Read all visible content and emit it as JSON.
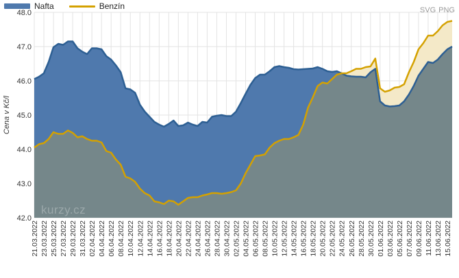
{
  "legend": {
    "nafta": "Nafta",
    "benzin": "Benzín"
  },
  "export": {
    "svg": "SVG",
    "png": "PNG"
  },
  "watermark": "kurzy.cz",
  "colors": {
    "nafta_line": "#2d5f93",
    "nafta_fill": "#4f79ad",
    "benzin_line": "#d4a100",
    "benzin_fill": "#f4e9c8",
    "overlap_fill": "#75878a",
    "grid": "#e3e3e3",
    "axis_text": "#333333"
  },
  "chart_data": {
    "type": "area",
    "xlabel": "",
    "ylabel": "Cena v Kč/l",
    "ylim": [
      42.0,
      48.0
    ],
    "yticks": [
      "42.0",
      "43.0",
      "44.0",
      "45.0",
      "46.0",
      "47.0",
      "48.0"
    ],
    "grid": true,
    "legend_position": "top-left",
    "x": [
      "21.03.2022",
      "22.03.2022",
      "23.03.2022",
      "24.03.2022",
      "25.03.2022",
      "26.03.2022",
      "27.03.2022",
      "28.03.2022",
      "29.03.2022",
      "30.03.2022",
      "31.03.2022",
      "01.04.2022",
      "02.04.2022",
      "03.04.2022",
      "04.04.2022",
      "05.04.2022",
      "06.04.2022",
      "07.04.2022",
      "08.04.2022",
      "09.04.2022",
      "10.04.2022",
      "11.04.2022",
      "12.04.2022",
      "13.04.2022",
      "14.04.2022",
      "15.04.2022",
      "16.04.2022",
      "17.04.2022",
      "18.04.2022",
      "19.04.2022",
      "20.04.2022",
      "21.04.2022",
      "22.04.2022",
      "23.04.2022",
      "24.04.2022",
      "25.04.2022",
      "26.04.2022",
      "27.04.2022",
      "28.04.2022",
      "29.04.2022",
      "30.04.2022",
      "01.05.2022",
      "02.05.2022",
      "03.05.2022",
      "04.05.2022",
      "05.05.2022",
      "06.05.2022",
      "07.05.2022",
      "08.05.2022",
      "09.05.2022",
      "10.05.2022",
      "11.05.2022",
      "12.05.2022",
      "13.05.2022",
      "14.05.2022",
      "15.05.2022",
      "16.05.2022",
      "17.05.2022",
      "18.05.2022",
      "19.05.2022",
      "20.05.2022",
      "21.05.2022",
      "22.05.2022",
      "23.05.2022",
      "24.05.2022",
      "25.05.2022",
      "26.05.2022",
      "27.05.2022",
      "28.05.2022",
      "29.05.2022",
      "30.05.2022",
      "31.05.2022",
      "01.06.2022",
      "02.06.2022",
      "03.06.2022",
      "04.06.2022",
      "05.06.2022",
      "06.06.2022",
      "07.06.2022",
      "08.06.2022",
      "09.06.2022",
      "10.06.2022",
      "11.06.2022",
      "12.06.2022",
      "13.06.2022",
      "14.06.2022",
      "15.06.2022",
      "16.06.2022"
    ],
    "x_tick_labels": [
      "21.03.2022",
      "23.03.2022",
      "25.03.2022",
      "27.03.2022",
      "29.03.2022",
      "31.03.2022",
      "02.04.2022",
      "04.04.2022",
      "06.04.2022",
      "08.04.2022",
      "10.04.2022",
      "12.04.2022",
      "14.04.2022",
      "16.04.2022",
      "18.04.2022",
      "20.04.2022",
      "22.04.2022",
      "24.04.2022",
      "26.04.2022",
      "28.04.2022",
      "30.04.2022",
      "02.05.2022",
      "04.05.2022",
      "06.05.2022",
      "08.05.2022",
      "10.05.2022",
      "12.05.2022",
      "14.05.2022",
      "16.05.2022",
      "18.05.2022",
      "20.05.2022",
      "22.05.2022",
      "24.05.2022",
      "26.05.2022",
      "28.05.2022",
      "30.05.2022",
      "01.06.2022",
      "03.06.2022",
      "05.06.2022",
      "07.06.2022",
      "09.06.2022",
      "11.06.2022",
      "13.06.2022",
      "15.06.2022"
    ],
    "series": [
      {
        "name": "Nafta",
        "values": [
          46.05,
          46.12,
          46.22,
          46.55,
          46.98,
          47.08,
          47.05,
          47.15,
          47.15,
          46.95,
          46.85,
          46.78,
          46.95,
          46.95,
          46.92,
          46.72,
          46.62,
          46.45,
          46.25,
          45.78,
          45.75,
          45.65,
          45.3,
          45.1,
          44.95,
          44.8,
          44.72,
          44.66,
          44.74,
          44.84,
          44.68,
          44.7,
          44.78,
          44.72,
          44.68,
          44.8,
          44.78,
          44.95,
          44.98,
          45.0,
          44.97,
          44.97,
          45.1,
          45.35,
          45.62,
          45.88,
          46.08,
          46.18,
          46.18,
          46.28,
          46.4,
          46.43,
          46.4,
          46.38,
          46.34,
          46.33,
          46.34,
          46.35,
          46.36,
          46.4,
          46.35,
          46.28,
          46.26,
          46.28,
          46.22,
          46.15,
          46.13,
          46.12,
          46.12,
          46.1,
          46.25,
          46.35,
          45.4,
          45.28,
          45.25,
          45.26,
          45.28,
          45.4,
          45.6,
          45.85,
          46.15,
          46.35,
          46.55,
          46.52,
          46.62,
          46.78,
          46.92,
          47.0
        ]
      },
      {
        "name": "Benzín",
        "values": [
          44.05,
          44.15,
          44.18,
          44.3,
          44.5,
          44.45,
          44.45,
          44.55,
          44.48,
          44.35,
          44.38,
          44.3,
          44.25,
          44.25,
          44.2,
          43.95,
          43.9,
          43.7,
          43.55,
          43.2,
          43.15,
          43.05,
          42.85,
          42.72,
          42.65,
          42.48,
          42.45,
          42.4,
          42.5,
          42.48,
          42.38,
          42.48,
          42.58,
          42.6,
          42.6,
          42.65,
          42.68,
          42.72,
          42.72,
          42.7,
          42.72,
          42.75,
          42.8,
          43.0,
          43.3,
          43.55,
          43.8,
          43.82,
          43.85,
          44.05,
          44.18,
          44.25,
          44.3,
          44.3,
          44.35,
          44.42,
          44.72,
          45.22,
          45.52,
          45.85,
          45.95,
          45.92,
          46.05,
          46.18,
          46.22,
          46.22,
          46.28,
          46.35,
          46.35,
          46.4,
          46.42,
          46.65,
          45.78,
          45.68,
          45.72,
          45.8,
          45.82,
          45.9,
          46.25,
          46.55,
          46.92,
          47.1,
          47.32,
          47.32,
          47.45,
          47.62,
          47.72,
          47.75
        ]
      }
    ]
  }
}
